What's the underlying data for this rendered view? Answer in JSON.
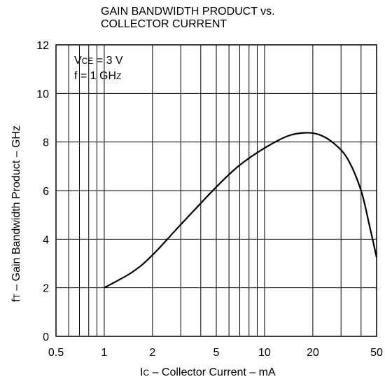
{
  "chart_data": {
    "type": "line",
    "title_lines": [
      "GAIN BANDWIDTH PRODUCT vs.",
      "COLLECTOR CURRENT"
    ],
    "xlabel": {
      "prefix": "I",
      "sub": "C",
      "rest": " – Collector Current – mA"
    },
    "ylabel": {
      "prefix": "f",
      "sub": "T",
      "rest": " – Gain Bandwidth Product – GHz"
    },
    "x_scale": "log",
    "xlim": [
      0.5,
      50
    ],
    "ylim": [
      0,
      12
    ],
    "x_ticks": [
      0.5,
      1,
      2,
      5,
      10,
      20,
      50
    ],
    "x_tick_labels": [
      "0.5",
      "1",
      "2",
      "5",
      "10",
      "20",
      "50"
    ],
    "y_ticks": [
      0,
      2,
      4,
      6,
      8,
      10,
      12
    ],
    "y_tick_labels": [
      "0",
      "2",
      "4",
      "6",
      "8",
      "10",
      "12"
    ],
    "grid": true,
    "annotations": {
      "line1": {
        "prefix": "V",
        "sub": "CE",
        "rest": " = 3 V"
      },
      "line2": {
        "prefix": "f = 1 GH",
        "sub": "Z",
        "rest": ""
      }
    },
    "series": [
      {
        "x": [
          1,
          1.5,
          2,
          3,
          5,
          7,
          10,
          14,
          18,
          22,
          27,
          33,
          40,
          45,
          50
        ],
        "y": [
          2.0,
          2.65,
          3.35,
          4.6,
          6.15,
          7.05,
          7.75,
          8.25,
          8.38,
          8.3,
          7.95,
          7.3,
          6.0,
          4.6,
          3.25
        ]
      }
    ],
    "line_color": "#000000"
  }
}
